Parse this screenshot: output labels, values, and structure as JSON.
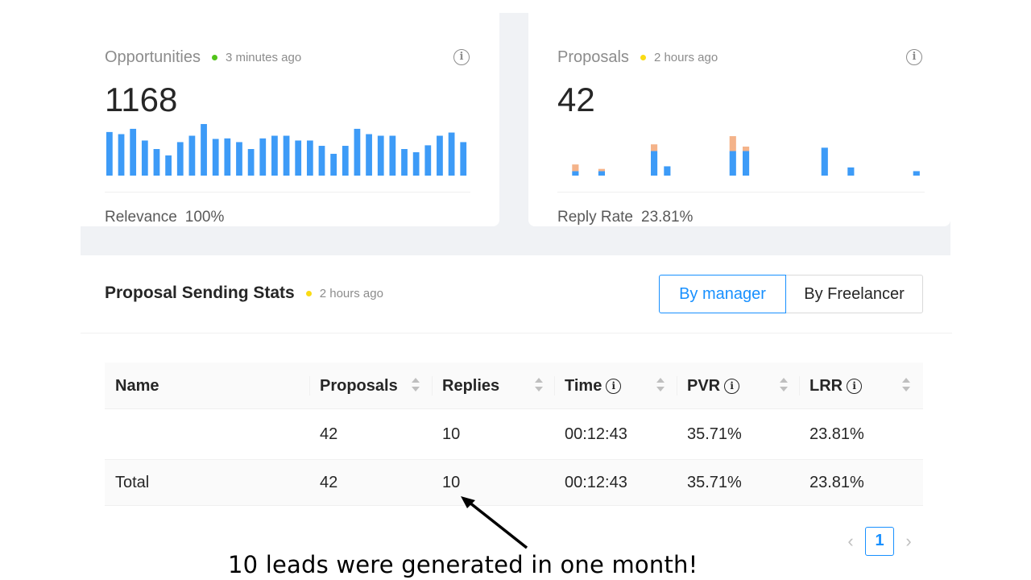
{
  "opportunities": {
    "title": "Opportunities",
    "status_color": "#52c41a",
    "updated": "3 minutes ago",
    "value": "1168",
    "footer_label": "Relevance",
    "footer_value": "100%",
    "bars": [
      0.82,
      0.78,
      0.88,
      0.66,
      0.5,
      0.38,
      0.63,
      0.75,
      0.97,
      0.69,
      0.7,
      0.63,
      0.5,
      0.7,
      0.75,
      0.75,
      0.66,
      0.66,
      0.56,
      0.41,
      0.56,
      0.88,
      0.78,
      0.75,
      0.75,
      0.5,
      0.44,
      0.57,
      0.75,
      0.81,
      0.63
    ]
  },
  "proposals": {
    "title": "Proposals",
    "status_color": "#fadb14",
    "updated": "2 hours ago",
    "value": "42",
    "footer_label": "Reply Rate",
    "footer_value": "23.81%",
    "bars": [
      {
        "base": 0,
        "top": 0
      },
      {
        "base": 0.12,
        "top": 0.18
      },
      {
        "base": 0,
        "top": 0
      },
      {
        "base": 0.12,
        "top": 0.06
      },
      {
        "base": 0,
        "top": 0
      },
      {
        "base": 0,
        "top": 0
      },
      {
        "base": 0,
        "top": 0
      },
      {
        "base": 0.66,
        "top": 0.18
      },
      {
        "base": 0.25,
        "top": 0
      },
      {
        "base": 0,
        "top": 0
      },
      {
        "base": 0,
        "top": 0
      },
      {
        "base": 0,
        "top": 0
      },
      {
        "base": 0,
        "top": 0
      },
      {
        "base": 0.66,
        "top": 0.4
      },
      {
        "base": 0.66,
        "top": 0.12
      },
      {
        "base": 0,
        "top": 0
      },
      {
        "base": 0,
        "top": 0
      },
      {
        "base": 0,
        "top": 0
      },
      {
        "base": 0,
        "top": 0
      },
      {
        "base": 0,
        "top": 0
      },
      {
        "base": 0.75,
        "top": 0
      },
      {
        "base": 0,
        "top": 0
      },
      {
        "base": 0.22,
        "top": 0
      },
      {
        "base": 0,
        "top": 0
      },
      {
        "base": 0,
        "top": 0
      },
      {
        "base": 0,
        "top": 0
      },
      {
        "base": 0,
        "top": 0
      },
      {
        "base": 0.12,
        "top": 0
      }
    ],
    "bar_color": "#3d9bf7",
    "bar_top_color": "#f4b38a"
  },
  "stats": {
    "title": "Proposal Sending Stats",
    "status_color": "#fadb14",
    "updated": "2 hours ago",
    "toggle": {
      "by_manager": "By manager",
      "by_freelancer": "By Freelancer",
      "selected": "By manager"
    },
    "columns": {
      "name": "Name",
      "proposals": "Proposals",
      "replies": "Replies",
      "time": "Time",
      "pvr": "PVR",
      "lrr": "LRR"
    },
    "rows": [
      {
        "name": "",
        "proposals": "42",
        "replies": "10",
        "time": "00:12:43",
        "pvr": "35.71%",
        "lrr": "23.81%"
      }
    ],
    "total": {
      "name": "Total",
      "proposals": "42",
      "replies": "10",
      "time": "00:12:43",
      "pvr": "35.71%",
      "lrr": "23.81%"
    },
    "pagination": {
      "prev": "‹",
      "current": "1",
      "next": "›"
    }
  },
  "annotation": "10 leads were generated in one month!",
  "icons": {
    "info": "info-icon",
    "sort": "sort-icon"
  },
  "colors": {
    "accent": "#1890ff",
    "bar": "#3d9bf7"
  }
}
